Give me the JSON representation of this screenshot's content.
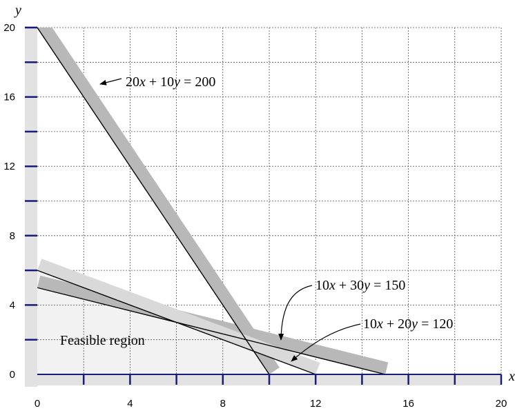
{
  "chart_data": {
    "type": "line",
    "xlabel": "x",
    "ylabel": "y",
    "xlim": [
      0,
      20
    ],
    "ylim": [
      0,
      20
    ],
    "x_ticks": [
      "0",
      "4",
      "8",
      "12",
      "16",
      "20"
    ],
    "y_ticks": [
      "0",
      "4",
      "8",
      "12",
      "16",
      "20"
    ],
    "grid": true,
    "series": [
      {
        "name": "20x + 10y = 200",
        "parts": [
          {
            "text": "20",
            "italic": false
          },
          {
            "text": "x",
            "italic": true
          },
          {
            "text": " + 10",
            "italic": false
          },
          {
            "text": "y",
            "italic": true
          },
          {
            "text": " = 200",
            "italic": false
          }
        ],
        "points": [
          [
            0,
            20
          ],
          [
            10,
            0
          ]
        ],
        "band_color": "#b8b8b8"
      },
      {
        "name": "10x + 30y = 150",
        "parts": [
          {
            "text": "10",
            "italic": false
          },
          {
            "text": "x",
            "italic": true
          },
          {
            "text": " + 30",
            "italic": false
          },
          {
            "text": "y",
            "italic": true
          },
          {
            "text": " = 150",
            "italic": false
          }
        ],
        "points": [
          [
            0,
            5
          ],
          [
            15,
            0
          ]
        ],
        "band_color": "#b8b8b8"
      },
      {
        "name": "10x + 20y = 120",
        "parts": [
          {
            "text": "10",
            "italic": false
          },
          {
            "text": "x",
            "italic": true
          },
          {
            "text": " + 20",
            "italic": false
          },
          {
            "text": "y",
            "italic": true
          },
          {
            "text": " = 120",
            "italic": false
          }
        ],
        "points": [
          [
            0,
            6
          ],
          [
            12,
            0
          ]
        ],
        "band_color": "#d9d9d9"
      }
    ],
    "feasible_region": {
      "label": "Feasible region",
      "vertices": [
        [
          0,
          0
        ],
        [
          0,
          6
        ],
        [
          6,
          3
        ],
        [
          9,
          2
        ],
        [
          10,
          0
        ]
      ],
      "color": "#f2f2f2"
    },
    "colors": {
      "axis_band": "#e2e2e2",
      "tick_mark": "#1a1a7a",
      "grid": "#555555"
    }
  }
}
